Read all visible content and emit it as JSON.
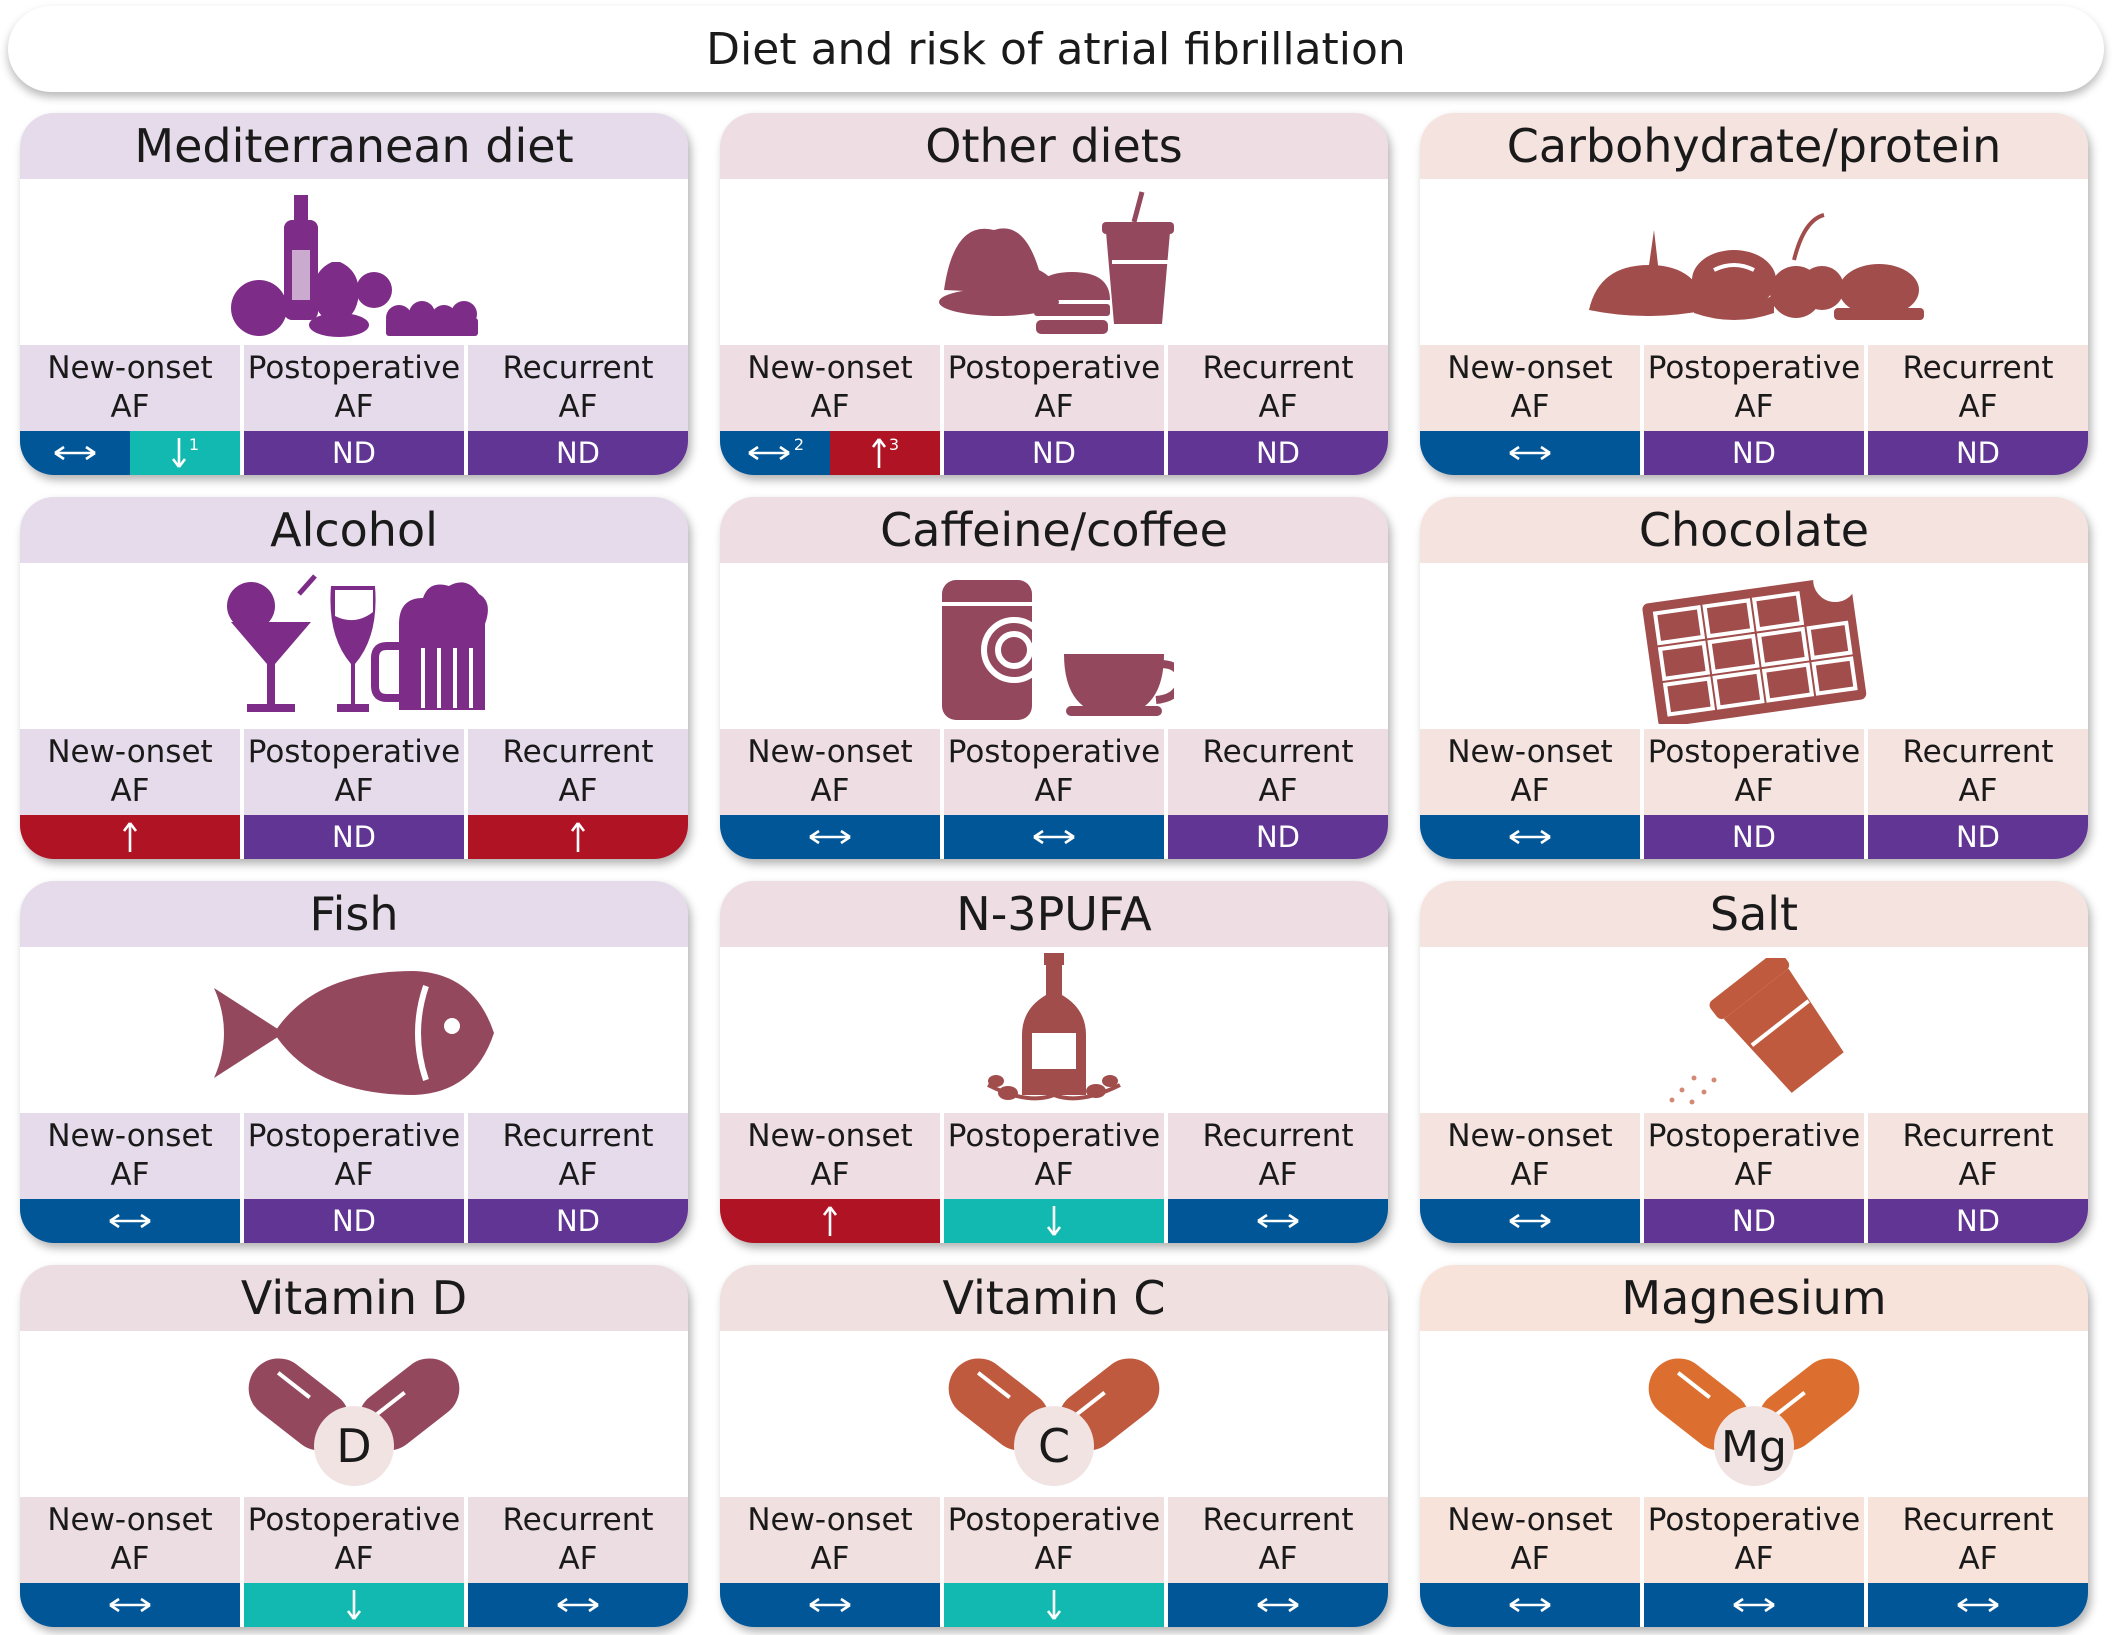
{
  "title": "Diet and risk of atrial fibrillation",
  "colors": {
    "no_association": "#005696",
    "not_determined": "#613594",
    "increased_risk": "#b01323",
    "decreased_risk": "#12b9b1",
    "header_mediterranean": "#e6dbea",
    "header_other": "#eedee3",
    "header_carbohydrate": "#f4e3df",
    "header_vitamin_d": "#ecdde3",
    "header_vitamin_c": "#f0e0df",
    "header_magnesium": "#f8e3da",
    "icon_purple": "#7d2c87",
    "icon_plum": "#94485e",
    "icon_rust": "#a04d4b",
    "icon_orange_brown": "#bf5a3e",
    "icon_orange": "#dc6f2f"
  },
  "cards": [
    {
      "title": "Mediterranean diet",
      "icon": "wine-bottle-vegetables-icon",
      "cols": [
        {
          "l1": "New-onset",
          "l2": "AF",
          "segs": [
            {
              "v": "no-association"
            },
            {
              "v": "decreased",
              "sup": "1"
            }
          ]
        },
        {
          "l1": "Postoperative",
          "l2": "AF",
          "segs": [
            {
              "v": "ND",
              "text": "ND"
            }
          ]
        },
        {
          "l1": "Recurrent",
          "l2": "AF",
          "segs": [
            {
              "v": "ND",
              "text": "ND"
            }
          ]
        }
      ]
    },
    {
      "title": "Other diets",
      "icon": "salad-burger-drink-icon",
      "cols": [
        {
          "l1": "New-onset",
          "l2": "AF",
          "segs": [
            {
              "v": "no-association",
              "sup": "2"
            },
            {
              "v": "increased",
              "sup": "3"
            }
          ]
        },
        {
          "l1": "Postoperative",
          "l2": "AF",
          "segs": [
            {
              "v": "ND",
              "text": "ND"
            }
          ]
        },
        {
          "l1": "Recurrent",
          "l2": "AF",
          "segs": [
            {
              "v": "ND",
              "text": "ND"
            }
          ]
        }
      ]
    },
    {
      "title": "Carbohydrate/protein",
      "icon": "bread-meat-poultry-icon",
      "cols": [
        {
          "l1": "New-onset",
          "l2": "AF",
          "segs": [
            {
              "v": "no-association"
            }
          ]
        },
        {
          "l1": "Postoperative",
          "l2": "AF",
          "segs": [
            {
              "v": "ND",
              "text": "ND"
            }
          ]
        },
        {
          "l1": "Recurrent",
          "l2": "AF",
          "segs": [
            {
              "v": "ND",
              "text": "ND"
            }
          ]
        }
      ]
    },
    {
      "title": "Alcohol",
      "icon": "cocktail-wine-beer-icon",
      "cols": [
        {
          "l1": "New-onset",
          "l2": "AF",
          "segs": [
            {
              "v": "increased"
            }
          ]
        },
        {
          "l1": "Postoperative",
          "l2": "AF",
          "segs": [
            {
              "v": "ND",
              "text": "ND"
            }
          ]
        },
        {
          "l1": "Recurrent",
          "l2": "AF",
          "segs": [
            {
              "v": "increased"
            }
          ]
        }
      ]
    },
    {
      "title": "Caffeine/coffee",
      "icon": "coffee-can-cup-icon",
      "cols": [
        {
          "l1": "New-onset",
          "l2": "AF",
          "segs": [
            {
              "v": "no-association"
            }
          ]
        },
        {
          "l1": "Postoperative",
          "l2": "AF",
          "segs": [
            {
              "v": "no-association"
            }
          ]
        },
        {
          "l1": "Recurrent",
          "l2": "AF",
          "segs": [
            {
              "v": "ND",
              "text": "ND"
            }
          ]
        }
      ]
    },
    {
      "title": "Chocolate",
      "icon": "chocolate-bar-icon",
      "cols": [
        {
          "l1": "New-onset",
          "l2": "AF",
          "segs": [
            {
              "v": "no-association"
            }
          ]
        },
        {
          "l1": "Postoperative",
          "l2": "AF",
          "segs": [
            {
              "v": "ND",
              "text": "ND"
            }
          ]
        },
        {
          "l1": "Recurrent",
          "l2": "AF",
          "segs": [
            {
              "v": "ND",
              "text": "ND"
            }
          ]
        }
      ]
    },
    {
      "title": "Fish",
      "icon": "fish-icon",
      "cols": [
        {
          "l1": "New-onset",
          "l2": "AF",
          "segs": [
            {
              "v": "no-association"
            }
          ]
        },
        {
          "l1": "Postoperative",
          "l2": "AF",
          "segs": [
            {
              "v": "ND",
              "text": "ND"
            }
          ]
        },
        {
          "l1": "Recurrent",
          "l2": "AF",
          "segs": [
            {
              "v": "ND",
              "text": "ND"
            }
          ]
        }
      ]
    },
    {
      "title": "N-3PUFA",
      "icon": "oil-bottle-olives-icon",
      "cols": [
        {
          "l1": "New-onset",
          "l2": "AF",
          "segs": [
            {
              "v": "increased"
            }
          ]
        },
        {
          "l1": "Postoperative",
          "l2": "AF",
          "segs": [
            {
              "v": "decreased"
            }
          ]
        },
        {
          "l1": "Recurrent",
          "l2": "AF",
          "segs": [
            {
              "v": "no-association"
            }
          ]
        }
      ]
    },
    {
      "title": "Salt",
      "icon": "salt-shaker-icon",
      "cols": [
        {
          "l1": "New-onset",
          "l2": "AF",
          "segs": [
            {
              "v": "no-association"
            }
          ]
        },
        {
          "l1": "Postoperative",
          "l2": "AF",
          "segs": [
            {
              "v": "ND",
              "text": "ND"
            }
          ]
        },
        {
          "l1": "Recurrent",
          "l2": "AF",
          "segs": [
            {
              "v": "ND",
              "text": "ND"
            }
          ]
        }
      ]
    },
    {
      "title": "Vitamin D",
      "icon": "capsule-icon",
      "capsule_letter": "D",
      "cols": [
        {
          "l1": "New-onset",
          "l2": "AF",
          "segs": [
            {
              "v": "no-association"
            }
          ]
        },
        {
          "l1": "Postoperative",
          "l2": "AF",
          "segs": [
            {
              "v": "decreased"
            }
          ]
        },
        {
          "l1": "Recurrent",
          "l2": "AF",
          "segs": [
            {
              "v": "no-association"
            }
          ]
        }
      ]
    },
    {
      "title": "Vitamin C",
      "icon": "capsule-icon",
      "capsule_letter": "C",
      "cols": [
        {
          "l1": "New-onset",
          "l2": "AF",
          "segs": [
            {
              "v": "no-association"
            }
          ]
        },
        {
          "l1": "Postoperative",
          "l2": "AF",
          "segs": [
            {
              "v": "decreased"
            }
          ]
        },
        {
          "l1": "Recurrent",
          "l2": "AF",
          "segs": [
            {
              "v": "no-association"
            }
          ]
        }
      ]
    },
    {
      "title": "Magnesium",
      "icon": "capsule-icon",
      "capsule_letter": "Mg",
      "cols": [
        {
          "l1": "New-onset",
          "l2": "AF",
          "segs": [
            {
              "v": "no-association"
            }
          ]
        },
        {
          "l1": "Postoperative",
          "l2": "AF",
          "segs": [
            {
              "v": "no-association"
            }
          ]
        },
        {
          "l1": "Recurrent",
          "l2": "AF",
          "segs": [
            {
              "v": "no-association"
            }
          ]
        }
      ]
    }
  ]
}
